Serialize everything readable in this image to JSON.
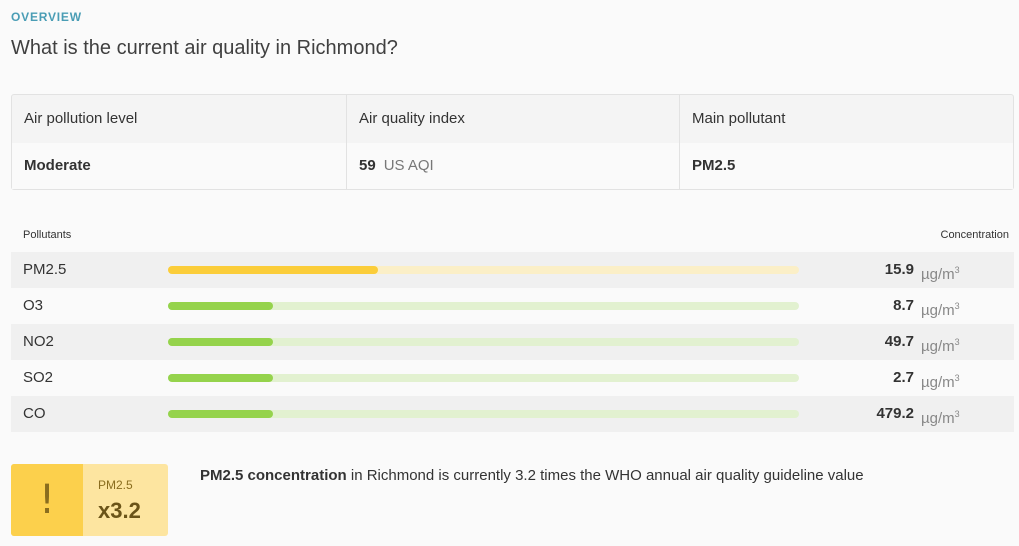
{
  "header": {
    "eyebrow": "OVERVIEW",
    "title": "What is the current air quality in Richmond?"
  },
  "summary": {
    "level_header": "Air pollution level",
    "level_value": "Moderate",
    "aqi_header": "Air quality index",
    "aqi_value": "59",
    "aqi_unit": "US AQI",
    "pollutant_header": "Main pollutant",
    "pollutant_value": "PM2.5"
  },
  "pollutants": {
    "label": "Pollutants",
    "concentration_label": "Concentration",
    "unit": "µg/m",
    "unit_sup": "3",
    "items": [
      {
        "name": "PM2.5",
        "value": "15.9",
        "level": 0.333,
        "color": "#fbcd3a",
        "track": "#fbefc7"
      },
      {
        "name": "O3",
        "value": "8.7",
        "level": 0.167,
        "color": "#95d34c",
        "track": "#e2f1d0"
      },
      {
        "name": "NO2",
        "value": "49.7",
        "level": 0.167,
        "color": "#95d34c",
        "track": "#e2f1d0"
      },
      {
        "name": "SO2",
        "value": "2.7",
        "level": 0.167,
        "color": "#95d34c",
        "track": "#e2f1d0"
      },
      {
        "name": "CO",
        "value": "479.2",
        "level": 0.167,
        "color": "#95d34c",
        "track": "#e2f1d0"
      }
    ]
  },
  "callout": {
    "icon": "exclamation-icon",
    "label": "PM2.5",
    "value": "x3.2",
    "bold": "PM2.5 concentration",
    "text": " in Richmond is currently 3.2 times the WHO annual air quality guideline value"
  }
}
